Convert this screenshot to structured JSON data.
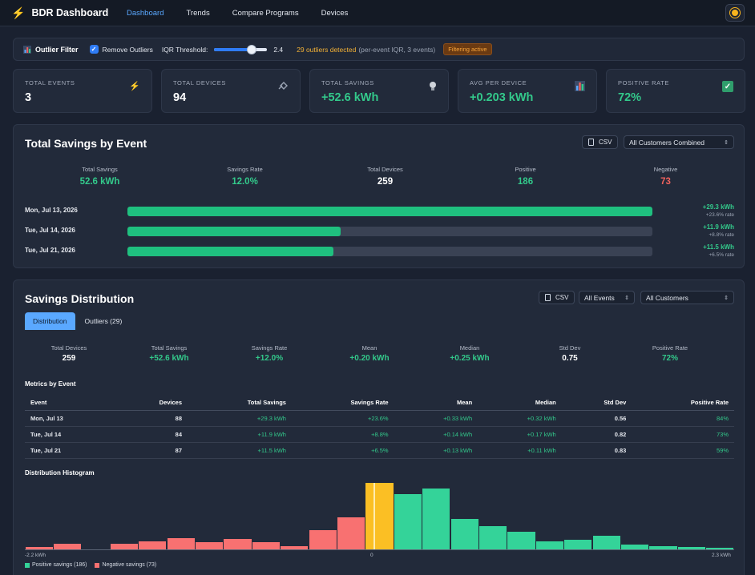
{
  "app": {
    "title": "BDR Dashboard"
  },
  "nav": {
    "items": [
      "Dashboard",
      "Trends",
      "Compare Programs",
      "Devices"
    ],
    "active": "Dashboard"
  },
  "filter": {
    "title": "Outlier Filter",
    "remove_outliers_label": "Remove Outliers",
    "remove_outliers_checked": true,
    "iqr_label": "IQR Threshold:",
    "iqr_value": "2.4",
    "iqr_fraction": 0.7,
    "outliers_text": "29 outliers detected",
    "outliers_sub": "(per-event IQR, 3 events)",
    "badge": "Filtering active"
  },
  "stats": [
    {
      "label": "Total Events",
      "value": "3",
      "icon": "bolt-icon"
    },
    {
      "label": "Total Devices",
      "value": "94",
      "icon": "plug-icon"
    },
    {
      "label": "Total Savings",
      "value": "+52.6 kWh",
      "icon": "lightbulb-icon"
    },
    {
      "label": "Avg Per Device",
      "value": "+0.203 kWh",
      "icon": "bar-chart-icon"
    },
    {
      "label": "Positive Rate",
      "value": "72%",
      "icon": "check-icon"
    }
  ],
  "savings_by_event": {
    "title": "Total Savings by Event",
    "csv_label": "CSV",
    "customer_select": "All Customers Combined",
    "summary": [
      {
        "label": "Total Savings",
        "value": "52.6 kWh"
      },
      {
        "label": "Savings Rate",
        "value": "12.0%"
      },
      {
        "label": "Total Devices",
        "value": "259"
      },
      {
        "label": "Positive",
        "value": "186"
      },
      {
        "label": "Negative",
        "value": "73"
      }
    ],
    "events": [
      {
        "date": "Mon, Jul 13, 2026",
        "amount": "+29.3 kWh",
        "rate": "+23.6% rate",
        "fraction": 1.0
      },
      {
        "date": "Tue, Jul 14, 2026",
        "amount": "+11.9 kWh",
        "rate": "+8.8% rate",
        "fraction": 0.406
      },
      {
        "date": "Tue, Jul 21, 2026",
        "amount": "+11.5 kWh",
        "rate": "+6.5% rate",
        "fraction": 0.392
      }
    ]
  },
  "distribution": {
    "title": "Savings Distribution",
    "csv_label": "CSV",
    "events_select": "All Events",
    "customers_select": "All Customers",
    "tabs": [
      "Distribution",
      "Outliers (29)"
    ],
    "summary": [
      {
        "label": "Total Devices",
        "value": "259"
      },
      {
        "label": "Total Savings",
        "value": "+52.6 kWh"
      },
      {
        "label": "Savings Rate",
        "value": "+12.0%"
      },
      {
        "label": "Mean",
        "value": "+0.20 kWh"
      },
      {
        "label": "Median",
        "value": "+0.25 kWh"
      },
      {
        "label": "Std Dev",
        "value": "0.75"
      },
      {
        "label": "Positive Rate",
        "value": "72%"
      }
    ],
    "metrics_title": "Metrics by Event",
    "columns": [
      "Event",
      "Devices",
      "Total Savings",
      "Savings Rate",
      "Mean",
      "Median",
      "Std Dev",
      "Positive Rate"
    ],
    "rows": [
      [
        "Mon, Jul 13",
        "88",
        "+29.3 kWh",
        "+23.6%",
        "+0.33 kWh",
        "+0.32 kWh",
        "0.56",
        "84%"
      ],
      [
        "Tue, Jul 14",
        "84",
        "+11.9 kWh",
        "+8.8%",
        "+0.14 kWh",
        "+0.17 kWh",
        "0.82",
        "73%"
      ],
      [
        "Tue, Jul 21",
        "87",
        "+11.5 kWh",
        "+6.5%",
        "+0.13 kWh",
        "+0.11 kWh",
        "0.83",
        "59%"
      ]
    ],
    "histogram_title": "Distribution Histogram",
    "x_min_label": "-2.2 kWh",
    "x_zero_label": "0",
    "x_max_label": "2.3 kWh",
    "legend": [
      "Positive savings (186)",
      "Negative savings (73)"
    ],
    "colors": {
      "positive": "#34d399",
      "negative": "#f87171",
      "median": "#fbbf24"
    }
  },
  "chart_data": {
    "type": "bar",
    "title": "Distribution Histogram",
    "xlim": [
      -2.2,
      2.3
    ],
    "bins": [
      {
        "sign": "neg",
        "count": 1
      },
      {
        "sign": "neg",
        "count": 2
      },
      {
        "sign": "neg",
        "count": 0
      },
      {
        "sign": "neg",
        "count": 2
      },
      {
        "sign": "neg",
        "count": 3
      },
      {
        "sign": "neg",
        "count": 4
      },
      {
        "sign": "neg",
        "count": 2.5
      },
      {
        "sign": "neg",
        "count": 3.8
      },
      {
        "sign": "neg",
        "count": 2.7
      },
      {
        "sign": "neg",
        "count": 1.2
      },
      {
        "sign": "neg",
        "count": 7
      },
      {
        "sign": "neg",
        "count": 11.5
      },
      {
        "sign": "median",
        "count": 24
      },
      {
        "sign": "pos",
        "count": 20
      },
      {
        "sign": "pos",
        "count": 22
      },
      {
        "sign": "pos",
        "count": 11
      },
      {
        "sign": "pos",
        "count": 8.3
      },
      {
        "sign": "pos",
        "count": 6.3
      },
      {
        "sign": "pos",
        "count": 2.8
      },
      {
        "sign": "pos",
        "count": 3.5
      },
      {
        "sign": "pos",
        "count": 5
      },
      {
        "sign": "pos",
        "count": 1.8
      },
      {
        "sign": "pos",
        "count": 1.1
      },
      {
        "sign": "pos",
        "count": 1
      },
      {
        "sign": "pos",
        "count": 0.4
      }
    ]
  }
}
